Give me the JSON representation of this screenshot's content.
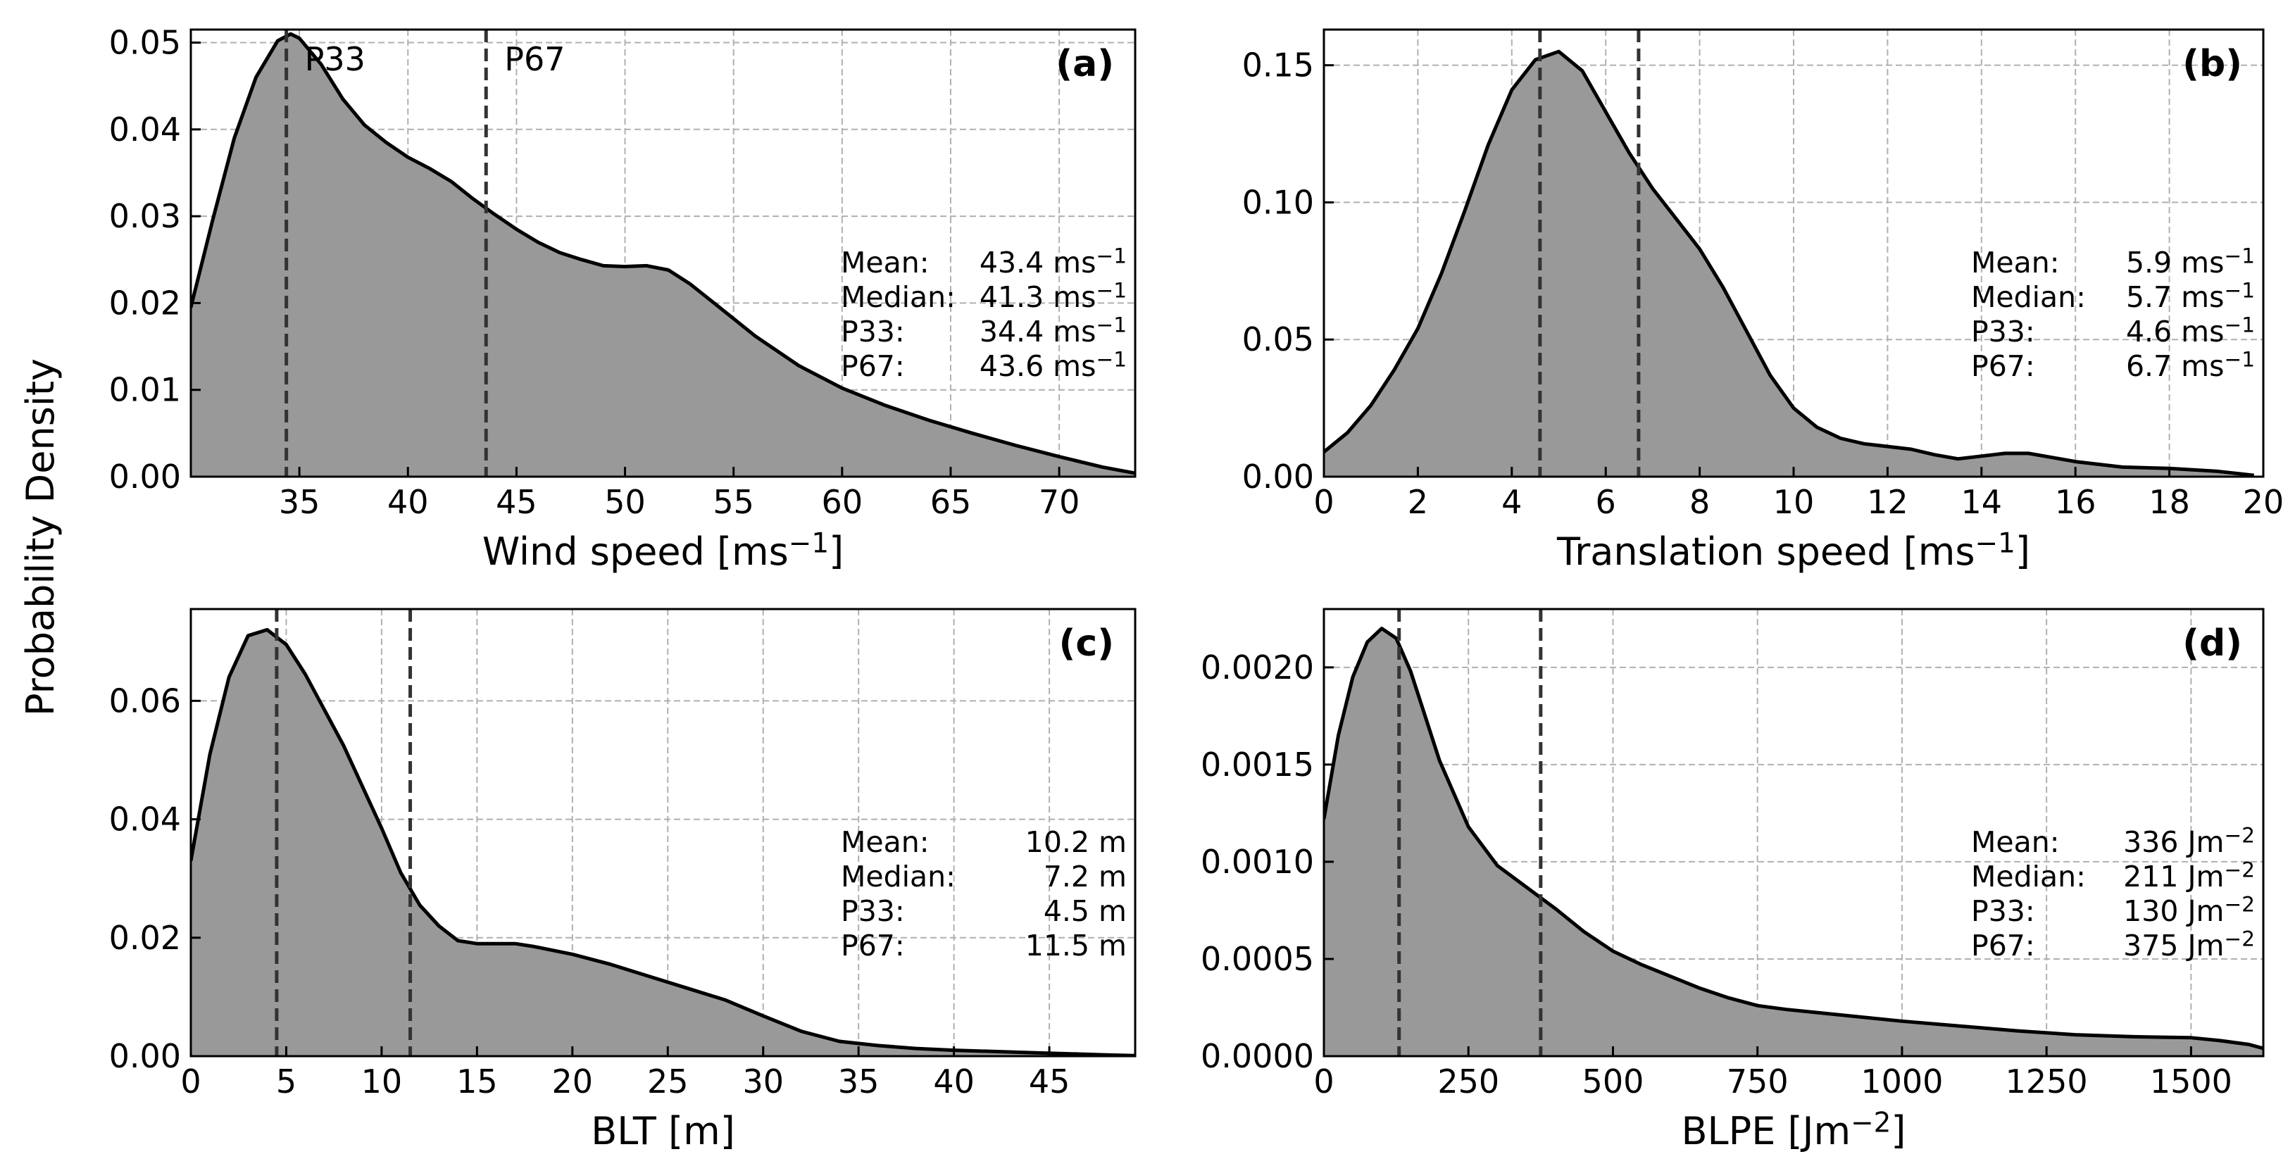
{
  "figure": {
    "ylabel": "Probability Density"
  },
  "chart_data": [
    {
      "panel": "(a)",
      "type": "area",
      "xlabel": "Wind speed [ms",
      "xlabel_sup": "−1",
      "xlabel_end": "]",
      "xlim": [
        30,
        73.5
      ],
      "ylim": [
        0,
        0.0515
      ],
      "xticks": [
        35,
        40,
        45,
        50,
        55,
        60,
        65,
        70
      ],
      "xtick_labels": [
        "35",
        "40",
        "45",
        "50",
        "55",
        "60",
        "65",
        "70"
      ],
      "yticks": [
        0,
        0.01,
        0.02,
        0.03,
        0.04,
        0.05
      ],
      "ytick_labels": [
        "0.00",
        "0.01",
        "0.02",
        "0.03",
        "0.04",
        "0.05"
      ],
      "x": [
        30,
        31,
        32,
        33,
        34,
        34.6,
        35,
        36,
        37,
        38,
        39,
        40,
        41,
        42,
        43,
        44,
        45,
        46,
        47,
        48,
        49,
        50,
        51,
        52,
        53,
        54,
        55,
        56,
        58,
        60,
        62,
        64,
        66,
        68,
        70,
        72,
        73.5
      ],
      "y": [
        0.0195,
        0.0295,
        0.039,
        0.046,
        0.0502,
        0.051,
        0.0505,
        0.0475,
        0.0435,
        0.0405,
        0.0385,
        0.0368,
        0.0355,
        0.034,
        0.032,
        0.0302,
        0.0285,
        0.027,
        0.0258,
        0.025,
        0.0243,
        0.0242,
        0.0243,
        0.0238,
        0.0222,
        0.0202,
        0.0182,
        0.0162,
        0.0128,
        0.0102,
        0.0082,
        0.0065,
        0.005,
        0.0036,
        0.0023,
        0.0011,
        0.0004
      ],
      "percentile_lines": [
        {
          "label": "P33",
          "value": 34.4
        },
        {
          "label": "P67",
          "value": 43.6
        }
      ],
      "stats": [
        {
          "label": "Mean:",
          "value": "43.4 ms",
          "sup": "−1"
        },
        {
          "label": "Median:",
          "value": "41.3 ms",
          "sup": "−1"
        },
        {
          "label": "P33:",
          "value": "34.4 ms",
          "sup": "−1"
        },
        {
          "label": "P67:",
          "value": "43.6 ms",
          "sup": "−1"
        }
      ]
    },
    {
      "panel": "(b)",
      "type": "area",
      "xlabel": "Translation speed [ms",
      "xlabel_sup": "−1",
      "xlabel_end": "]",
      "xlim": [
        0,
        20
      ],
      "ylim": [
        0,
        0.163
      ],
      "xticks": [
        0,
        2,
        4,
        6,
        8,
        10,
        12,
        14,
        16,
        18,
        20
      ],
      "xtick_labels": [
        "0",
        "2",
        "4",
        "6",
        "8",
        "10",
        "12",
        "14",
        "16",
        "18",
        "20"
      ],
      "yticks": [
        0,
        0.05,
        0.1,
        0.15
      ],
      "ytick_labels": [
        "0.00",
        "0.05",
        "0.10",
        "0.15"
      ],
      "x": [
        0,
        0.5,
        1,
        1.5,
        2,
        2.5,
        3,
        3.5,
        4,
        4.5,
        5,
        5.5,
        6,
        6.5,
        7,
        7.5,
        8,
        8.5,
        9,
        9.5,
        10,
        10.5,
        11,
        11.5,
        12,
        12.5,
        13,
        13.5,
        14,
        14.5,
        15,
        15.5,
        16,
        17,
        18,
        19,
        19.8
      ],
      "y": [
        0.009,
        0.016,
        0.026,
        0.039,
        0.054,
        0.074,
        0.097,
        0.121,
        0.141,
        0.152,
        0.155,
        0.148,
        0.133,
        0.118,
        0.105,
        0.094,
        0.083,
        0.069,
        0.053,
        0.037,
        0.025,
        0.018,
        0.014,
        0.012,
        0.011,
        0.01,
        0.008,
        0.0065,
        0.0075,
        0.0085,
        0.0085,
        0.007,
        0.0055,
        0.0035,
        0.003,
        0.002,
        0.0005
      ],
      "percentile_lines": [
        {
          "label": "",
          "value": 4.6
        },
        {
          "label": "",
          "value": 6.7
        }
      ],
      "stats": [
        {
          "label": "Mean:",
          "value": "5.9 ms",
          "sup": "−1"
        },
        {
          "label": "Median:",
          "value": "5.7 ms",
          "sup": "−1"
        },
        {
          "label": "P33:",
          "value": "4.6 ms",
          "sup": "−1"
        },
        {
          "label": "P67:",
          "value": "6.7 ms",
          "sup": "−1"
        }
      ]
    },
    {
      "panel": "(c)",
      "type": "area",
      "xlabel": "BLT [m]",
      "xlabel_sup": "",
      "xlabel_end": "",
      "xlim": [
        0,
        49.5
      ],
      "ylim": [
        0,
        0.0755
      ],
      "xticks": [
        0,
        5,
        10,
        15,
        20,
        25,
        30,
        35,
        40,
        45
      ],
      "xtick_labels": [
        "0",
        "5",
        "10",
        "15",
        "20",
        "25",
        "30",
        "35",
        "40",
        "45"
      ],
      "yticks": [
        0,
        0.02,
        0.04,
        0.06
      ],
      "ytick_labels": [
        "0.00",
        "0.02",
        "0.04",
        "0.06"
      ],
      "x": [
        0,
        1,
        2,
        3,
        4,
        5,
        6,
        7,
        8,
        9,
        10,
        11,
        12,
        13,
        14,
        15,
        16,
        17,
        18,
        20,
        22,
        24,
        26,
        28,
        30,
        32,
        34,
        36,
        38,
        40,
        42,
        44,
        46,
        48,
        49.5
      ],
      "y": [
        0.033,
        0.051,
        0.064,
        0.071,
        0.072,
        0.0695,
        0.0645,
        0.0585,
        0.0525,
        0.0455,
        0.0385,
        0.031,
        0.0255,
        0.022,
        0.0195,
        0.019,
        0.019,
        0.019,
        0.0185,
        0.0172,
        0.0155,
        0.0135,
        0.0115,
        0.0095,
        0.0068,
        0.0042,
        0.0025,
        0.0018,
        0.0013,
        0.001,
        0.0008,
        0.0006,
        0.0004,
        0.0002,
        0.0001
      ],
      "percentile_lines": [
        {
          "label": "",
          "value": 4.5
        },
        {
          "label": "",
          "value": 11.5
        }
      ],
      "stats": [
        {
          "label": "Mean:",
          "value": "10.2 m",
          "sup": ""
        },
        {
          "label": "Median:",
          "value": "7.2 m",
          "sup": ""
        },
        {
          "label": "P33:",
          "value": "4.5 m",
          "sup": ""
        },
        {
          "label": "P67:",
          "value": "11.5 m",
          "sup": ""
        }
      ]
    },
    {
      "panel": "(d)",
      "type": "area",
      "xlabel": "BLPE [Jm",
      "xlabel_sup": "−2",
      "xlabel_end": "]",
      "xlim": [
        0,
        1625
      ],
      "ylim": [
        0,
        0.0023
      ],
      "xticks": [
        0,
        250,
        500,
        750,
        1000,
        1250,
        1500
      ],
      "xtick_labels": [
        "0",
        "250",
        "500",
        "750",
        "1000",
        "1250",
        "1500"
      ],
      "yticks": [
        0,
        0.0005,
        0.001,
        0.0015,
        0.002
      ],
      "ytick_labels": [
        "0.0000",
        "0.0005",
        "0.0010",
        "0.0015",
        "0.0020"
      ],
      "x": [
        0,
        25,
        50,
        75,
        100,
        125,
        150,
        175,
        200,
        250,
        300,
        350,
        400,
        450,
        500,
        550,
        600,
        650,
        700,
        750,
        800,
        900,
        1000,
        1100,
        1200,
        1300,
        1400,
        1500,
        1550,
        1600,
        1625
      ],
      "y": [
        0.00122,
        0.00165,
        0.00195,
        0.00213,
        0.0022,
        0.00215,
        0.00198,
        0.00175,
        0.00152,
        0.00118,
        0.00098,
        0.00087,
        0.00076,
        0.00064,
        0.00054,
        0.00047,
        0.00041,
        0.00035,
        0.0003,
        0.00026,
        0.00024,
        0.00021,
        0.00018,
        0.000155,
        0.00013,
        0.00011,
        0.0001,
        9.5e-05,
        8e-05,
        6e-05,
        4e-05
      ],
      "percentile_lines": [
        {
          "label": "",
          "value": 130
        },
        {
          "label": "",
          "value": 375
        }
      ],
      "stats": [
        {
          "label": "Mean:",
          "value": "336 Jm",
          "sup": "−2"
        },
        {
          "label": "Median:",
          "value": "211 Jm",
          "sup": "−2"
        },
        {
          "label": "P33:",
          "value": "130 Jm",
          "sup": "−2"
        },
        {
          "label": "P67:",
          "value": "375 Jm",
          "sup": "−2"
        }
      ]
    }
  ]
}
